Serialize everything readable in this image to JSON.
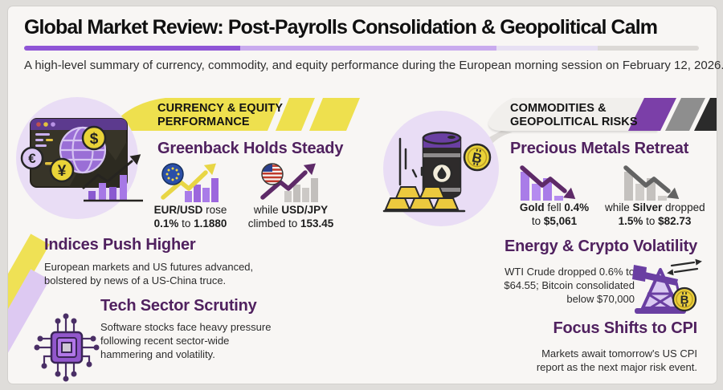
{
  "header": {
    "title": "Global Market Review: Post-Payrolls Consolidation & Geopolitical Calm",
    "subtitle": "A high-level summary of currency, commodity, and equity performance during the European morning session on February 12, 2026."
  },
  "palette": {
    "accent_purple": "#8f55d6",
    "banner_yellow": "#eee04e",
    "heading_plum": "#50215f",
    "bar_purple": "#a97ce8",
    "bar_gray": "#c6c3c0",
    "arrow_yellow": "#e8d645",
    "arrow_plum": "#5e2a68",
    "arrow_gray": "#636363",
    "coin_yellow": "#ecd03c",
    "stripe_purple": "#7b3fa8",
    "stripe_gray": "#8e8e8e",
    "stripe_black": "#2b2b2b"
  },
  "left_column": {
    "banner": {
      "line1": "CURRENCY & EQUITY",
      "line2": "PERFORMANCE",
      "icon": "yellow-ribbon-banner"
    },
    "illustration_icon": "globe-browser-market-chart-icon",
    "greenback": {
      "heading": "Greenback Holds Steady",
      "eur_stat": {
        "icon": "eu-flag-rising-chart-icon",
        "line1": [
          {
            "t": "EUR/USD",
            "b": true
          },
          {
            "t": " rose"
          }
        ],
        "line2": [
          {
            "t": "0.1%",
            "b": true
          },
          {
            "t": " to "
          },
          {
            "t": "1.1880",
            "b": true
          }
        ]
      },
      "jpy_stat": {
        "icon": "us-flag-rising-chart-icon",
        "line1": [
          {
            "t": "while "
          },
          {
            "t": "USD/JPY",
            "b": true
          }
        ],
        "line2": [
          {
            "t": "climbed to "
          },
          {
            "t": "153.45",
            "b": true
          }
        ]
      }
    },
    "indices": {
      "heading": "Indices Push Higher",
      "body": [
        "European markets and US futures advanced,",
        "bolstered by news of a US-China truce."
      ]
    },
    "tech": {
      "heading": "Tech Sector Scrutiny",
      "icon": "microchip-icon",
      "body": [
        "Software stocks face heavy pressure",
        "following recent sector-wide",
        "hammering and volatility."
      ]
    }
  },
  "right_column": {
    "banner": {
      "line1": "COMMODITIES &",
      "line2": "GEOPOLITICAL RISKS",
      "icon": "gray-ribbon-banner"
    },
    "illustration_icon": "oil-barrel-gold-bars-bitcoin-icon",
    "metals": {
      "heading": "Precious Metals Retreat",
      "gold_stat": {
        "icon": "falling-chart-purple-icon",
        "line1": [
          {
            "t": "Gold",
            "b": true
          },
          {
            "t": " fell "
          },
          {
            "t": "0.4%",
            "b": true
          }
        ],
        "line2": [
          {
            "t": "to "
          },
          {
            "t": "$5,061",
            "b": true
          }
        ]
      },
      "silver_stat": {
        "icon": "falling-chart-gray-icon",
        "line1": [
          {
            "t": "while "
          },
          {
            "t": "Silver",
            "b": true
          },
          {
            "t": " dropped"
          }
        ],
        "line2": [
          {
            "t": "1.5%",
            "b": true
          },
          {
            "t": " to "
          },
          {
            "t": "$82.73",
            "b": true
          }
        ]
      }
    },
    "energy": {
      "heading": "Energy & Crypto Volatility",
      "icon": "oil-pump-bitcoin-swap-icon",
      "body": [
        "WTI Crude dropped 0.6% to",
        "$64.55; Bitcoin consolidated",
        "below $70,000"
      ]
    },
    "cpi": {
      "heading": "Focus Shifts to CPI",
      "body": [
        "Markets await tomorrow's US CPI",
        "report as the next major risk event."
      ]
    }
  }
}
